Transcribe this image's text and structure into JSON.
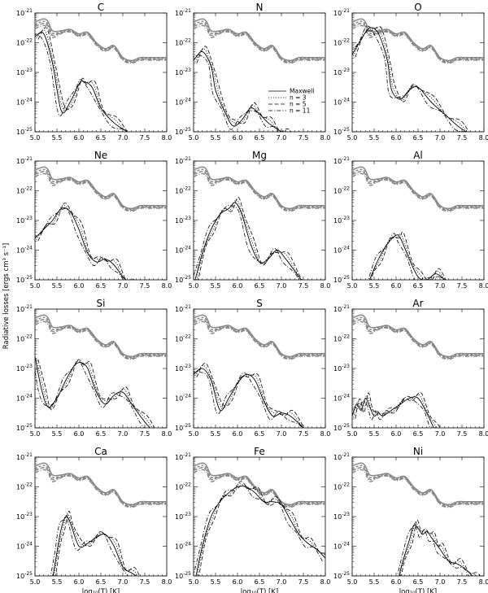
{
  "chart_data": {
    "type": "line",
    "layout": {
      "rows": 4,
      "cols": 3
    },
    "xlabel": "log₁₀(T) [K]",
    "ylabel": "Radiative losses [ergs cm³ s⁻¹]",
    "xlim": [
      5.0,
      8.0
    ],
    "ylim_log10": [
      -25,
      -21
    ],
    "xticks": [
      "5.0",
      "5.5",
      "6.0",
      "6.5",
      "7.0",
      "7.5",
      "8.0"
    ],
    "yticks": [
      {
        "base": "10",
        "exp": "-21"
      },
      {
        "base": "10",
        "exp": "-22"
      },
      {
        "base": "10",
        "exp": "-23"
      },
      {
        "base": "10",
        "exp": "-24"
      },
      {
        "base": "10",
        "exp": "-25"
      }
    ],
    "legend": {
      "panel": "N",
      "placement": "lower-right",
      "entries": [
        "Maxwell",
        "n = 3",
        "n = 5",
        "n = 11"
      ]
    },
    "total_curve": {
      "x": [
        5.0,
        5.2,
        5.3,
        5.4,
        5.6,
        5.8,
        6.0,
        6.2,
        6.4,
        6.6,
        6.8,
        7.0,
        7.2,
        7.4,
        7.6,
        8.0
      ],
      "log10_y": [
        -21.3,
        -21.2,
        -21.3,
        -21.6,
        -21.6,
        -21.55,
        -21.7,
        -21.65,
        -22.0,
        -22.2,
        -22.1,
        -22.5,
        -22.6,
        -22.5,
        -22.5,
        -22.5
      ]
    },
    "panels": [
      {
        "element": "C",
        "x": [
          5.0,
          5.2,
          5.4,
          5.6,
          5.8,
          6.0,
          6.1,
          6.3,
          6.5,
          6.8,
          7.1,
          7.4,
          7.7,
          8.0
        ],
        "log10_y": [
          -21.8,
          -21.7,
          -22.7,
          -24.3,
          -24.0,
          -23.4,
          -23.3,
          -23.5,
          -24.2,
          -24.7,
          -25.0,
          -25.3,
          -25.6,
          -25.9
        ]
      },
      {
        "element": "N",
        "x": [
          5.0,
          5.2,
          5.4,
          5.5,
          5.7,
          5.9,
          6.1,
          6.3,
          6.5,
          6.7,
          6.9,
          7.1,
          7.4,
          7.7,
          8.0
        ],
        "log10_y": [
          -22.6,
          -22.3,
          -22.8,
          -23.6,
          -24.3,
          -24.8,
          -24.6,
          -24.2,
          -24.4,
          -24.7,
          -24.9,
          -25.1,
          -25.4,
          -25.7,
          -26.0
        ]
      },
      {
        "element": "O",
        "x": [
          5.0,
          5.2,
          5.4,
          5.6,
          5.8,
          5.9,
          6.1,
          6.3,
          6.5,
          6.8,
          7.1,
          7.4,
          7.7,
          8.0
        ],
        "log10_y": [
          -22.4,
          -21.9,
          -21.5,
          -21.7,
          -22.6,
          -23.6,
          -23.9,
          -23.6,
          -23.5,
          -24.0,
          -24.4,
          -24.8,
          -25.1,
          -25.4
        ]
      },
      {
        "element": "Ne",
        "x": [
          5.0,
          5.2,
          5.4,
          5.6,
          5.8,
          6.0,
          6.2,
          6.4,
          6.6,
          6.8,
          7.0,
          7.2,
          7.5,
          7.8,
          8.0
        ],
        "log10_y": [
          -23.6,
          -23.3,
          -23.0,
          -22.6,
          -22.7,
          -23.3,
          -24.1,
          -24.4,
          -24.3,
          -24.5,
          -24.9,
          -25.2,
          -25.8,
          -26.3,
          -26.7
        ]
      },
      {
        "element": "Mg",
        "x": [
          5.0,
          5.2,
          5.4,
          5.6,
          5.8,
          5.95,
          6.1,
          6.3,
          6.5,
          6.7,
          6.9,
          7.1,
          7.4,
          7.7,
          8.0
        ],
        "log10_y": [
          -25.2,
          -24.1,
          -23.3,
          -22.8,
          -22.6,
          -22.4,
          -22.8,
          -23.8,
          -24.4,
          -24.3,
          -24.0,
          -24.3,
          -24.9,
          -25.5,
          -26.0
        ]
      },
      {
        "element": "Al",
        "x": [
          5.2,
          5.4,
          5.6,
          5.8,
          6.0,
          6.1,
          6.3,
          6.5,
          6.7,
          6.9,
          7.1,
          7.3,
          7.5,
          7.8,
          8.0
        ],
        "log10_y": [
          -26.0,
          -25.0,
          -24.3,
          -23.8,
          -23.5,
          -23.6,
          -24.3,
          -24.9,
          -25.0,
          -24.8,
          -25.0,
          -25.4,
          -25.8,
          -26.3,
          -26.6
        ]
      },
      {
        "element": "Si",
        "x": [
          5.0,
          5.15,
          5.3,
          5.5,
          5.7,
          5.9,
          6.05,
          6.2,
          6.4,
          6.6,
          6.8,
          7.0,
          7.2,
          7.5,
          7.8,
          8.0
        ],
        "log10_y": [
          -22.6,
          -23.7,
          -24.3,
          -24.0,
          -23.4,
          -22.9,
          -22.8,
          -23.0,
          -23.8,
          -24.2,
          -23.9,
          -23.8,
          -24.2,
          -24.8,
          -25.3,
          -25.7
        ]
      },
      {
        "element": "S",
        "x": [
          5.0,
          5.2,
          5.4,
          5.6,
          5.8,
          6.0,
          6.2,
          6.4,
          6.6,
          6.8,
          7.0,
          7.2,
          7.5,
          7.8,
          8.0
        ],
        "log10_y": [
          -23.2,
          -23.0,
          -23.4,
          -24.4,
          -24.0,
          -23.5,
          -23.2,
          -23.4,
          -24.1,
          -24.6,
          -24.5,
          -24.6,
          -25.0,
          -25.5,
          -25.8
        ]
      },
      {
        "element": "Ar",
        "x": [
          5.0,
          5.1,
          5.2,
          5.3,
          5.4,
          5.5,
          5.6,
          5.7,
          5.9,
          6.1,
          6.3,
          6.5,
          6.7,
          6.9,
          7.2,
          7.5,
          7.8,
          8.0
        ],
        "log10_y": [
          -24.6,
          -24.2,
          -24.4,
          -24.0,
          -24.3,
          -24.6,
          -24.5,
          -24.6,
          -24.4,
          -24.2,
          -24.0,
          -24.0,
          -24.5,
          -25.1,
          -25.6,
          -26.0,
          -26.4,
          -26.7
        ]
      },
      {
        "element": "Ca",
        "x": [
          5.3,
          5.5,
          5.6,
          5.7,
          5.8,
          6.0,
          6.2,
          6.4,
          6.6,
          6.8,
          7.0,
          7.2,
          7.4,
          7.7,
          8.0
        ],
        "log10_y": [
          -26.0,
          -24.2,
          -23.4,
          -23.0,
          -23.2,
          -24.0,
          -23.9,
          -23.7,
          -23.6,
          -24.0,
          -24.7,
          -24.9,
          -25.1,
          -25.5,
          -26.0
        ]
      },
      {
        "element": "Fe",
        "x": [
          5.0,
          5.2,
          5.4,
          5.6,
          5.8,
          6.0,
          6.2,
          6.4,
          6.6,
          6.8,
          7.0,
          7.2,
          7.4,
          7.6,
          7.8,
          8.0
        ],
        "log10_y": [
          -25.4,
          -24.0,
          -23.0,
          -22.5,
          -22.2,
          -22.0,
          -22.0,
          -22.2,
          -22.5,
          -22.5,
          -22.6,
          -23.1,
          -23.6,
          -23.9,
          -24.1,
          -24.4
        ]
      },
      {
        "element": "Ni",
        "x": [
          5.95,
          6.1,
          6.3,
          6.4,
          6.5,
          6.6,
          6.7,
          6.8,
          6.9,
          7.0,
          7.2,
          7.4,
          7.6,
          7.8,
          8.0
        ],
        "log10_y": [
          -26.0,
          -24.8,
          -23.8,
          -23.3,
          -23.4,
          -23.6,
          -23.5,
          -23.7,
          -23.9,
          -24.1,
          -24.5,
          -24.6,
          -24.8,
          -25.1,
          -25.4
        ]
      }
    ]
  }
}
